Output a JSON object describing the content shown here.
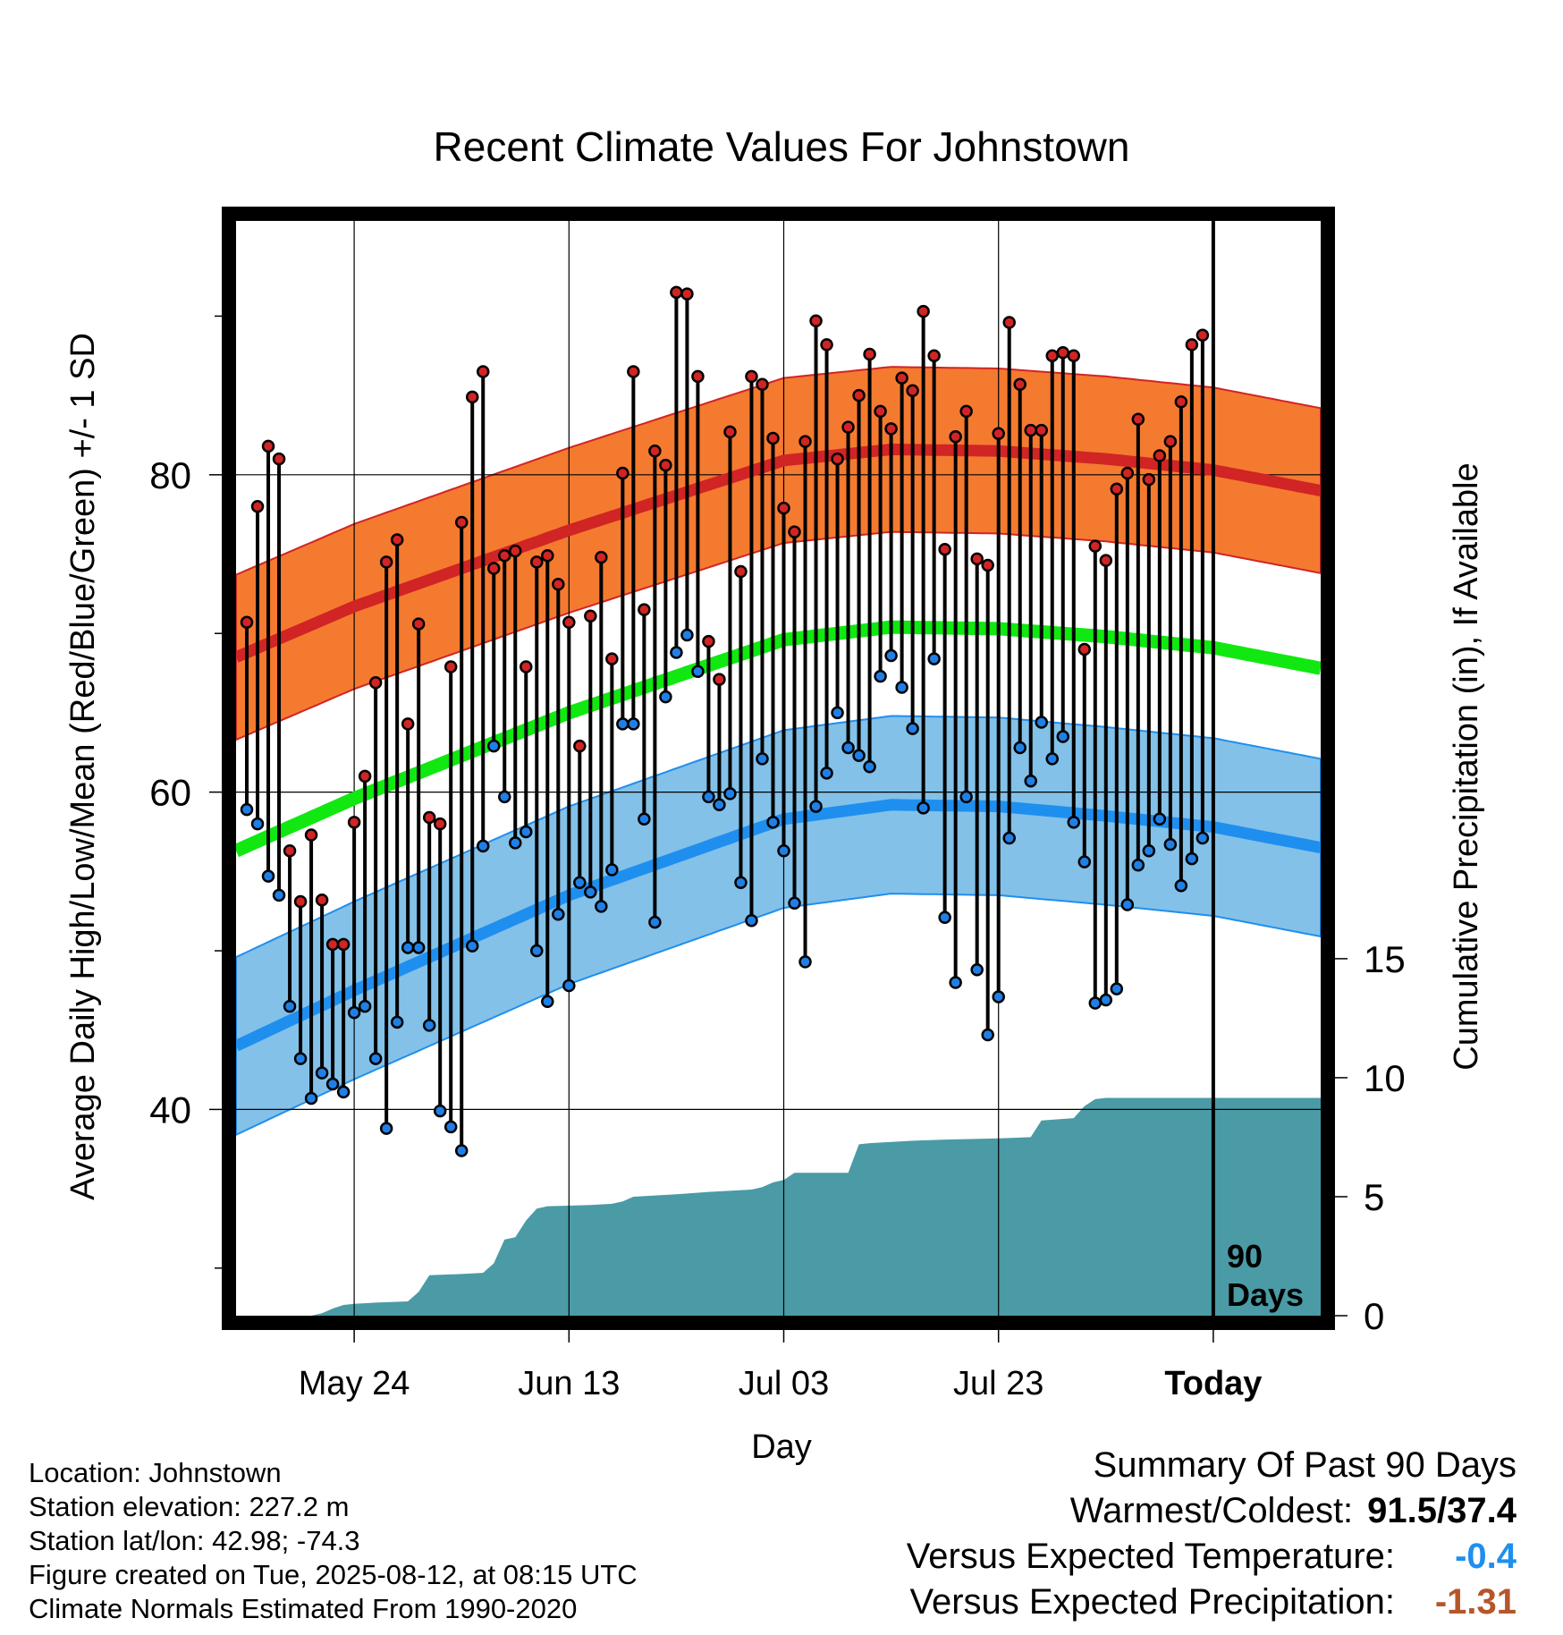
{
  "title": "Recent Climate Values For Johnstown",
  "y_left_label": "Average Daily High/Low/Mean (Red/Blue/Green) +/- 1 SD",
  "y_right_label": "Cumulative Precipitation (in), If Available",
  "x_label": "Day",
  "today_annotation": [
    "90",
    "Days"
  ],
  "colors": {
    "high_band": "#f47a30",
    "high_line": "#d12424",
    "low_band": "#83c1e8",
    "low_line": "#1f8fef",
    "mean_line": "#11e811",
    "precip": "#4a9ba6",
    "high_dot": "#d12424",
    "low_dot": "#1f7fe6",
    "temp_anomaly": "#1f8fef",
    "precip_anomaly": "#b5562a"
  },
  "chart_data": {
    "type": "line",
    "x_ticks": [
      {
        "day": 10,
        "label": "May 24"
      },
      {
        "day": 30,
        "label": "Jun 13"
      },
      {
        "day": 50,
        "label": "Jul 03"
      },
      {
        "day": 70,
        "label": "Jul 23"
      },
      {
        "day": 90,
        "label": "Today"
      }
    ],
    "xlim": [
      -1,
      100
    ],
    "ylim_left": [
      27,
      96
    ],
    "y_ticks_left": [
      40,
      60,
      80
    ],
    "y_minor_left": [
      30,
      50,
      70,
      90
    ],
    "ylim_right": [
      0,
      46
    ],
    "y_ticks_right": [
      0,
      5,
      10,
      15
    ],
    "normal_high_anchors": [
      [
        -1,
        68.5
      ],
      [
        10,
        71.7
      ],
      [
        30,
        76.5
      ],
      [
        50,
        80.9
      ],
      [
        60,
        81.6
      ],
      [
        70,
        81.5
      ],
      [
        80,
        81.0
      ],
      [
        90,
        80.3
      ],
      [
        100,
        79.0
      ]
    ],
    "normal_low_anchors": [
      [
        -1,
        44.0
      ],
      [
        10,
        47.5
      ],
      [
        30,
        53.5
      ],
      [
        50,
        58.3
      ],
      [
        60,
        59.2
      ],
      [
        70,
        59.1
      ],
      [
        80,
        58.5
      ],
      [
        90,
        57.8
      ],
      [
        100,
        56.5
      ]
    ],
    "normal_mean_anchors": [
      [
        -1,
        56.3
      ],
      [
        10,
        59.6
      ],
      [
        30,
        65.0
      ],
      [
        50,
        69.6
      ],
      [
        60,
        70.4
      ],
      [
        70,
        70.3
      ],
      [
        80,
        69.8
      ],
      [
        90,
        69.1
      ],
      [
        100,
        67.8
      ]
    ],
    "sd_high": 5.2,
    "sd_low": 5.6,
    "daily": [
      {
        "high": 70.7,
        "low": 58.9
      },
      {
        "high": 78.0,
        "low": 58.0
      },
      {
        "high": 81.8,
        "low": 54.7
      },
      {
        "high": 81.0,
        "low": 53.5
      },
      {
        "high": 56.3,
        "low": 46.5
      },
      {
        "high": 53.1,
        "low": 43.2
      },
      {
        "high": 57.3,
        "low": 40.7
      },
      {
        "high": 53.2,
        "low": 42.3
      },
      {
        "high": 50.4,
        "low": 41.6
      },
      {
        "high": 50.4,
        "low": 41.1
      },
      {
        "high": 58.1,
        "low": 46.1
      },
      {
        "high": 61.0,
        "low": 46.5
      },
      {
        "high": 66.9,
        "low": 43.2
      },
      {
        "high": 74.5,
        "low": 38.8
      },
      {
        "high": 75.9,
        "low": 45.5
      },
      {
        "high": 64.3,
        "low": 50.2
      },
      {
        "high": 70.6,
        "low": 50.2
      },
      {
        "high": 58.4,
        "low": 45.3
      },
      {
        "high": 58.0,
        "low": 39.9
      },
      {
        "high": 67.9,
        "low": 38.9
      },
      {
        "high": 77.0,
        "low": 37.4
      },
      {
        "high": 84.9,
        "low": 50.3
      },
      {
        "high": 86.5,
        "low": 56.6
      },
      {
        "high": 74.1,
        "low": 62.9
      },
      {
        "high": 74.9,
        "low": 59.7
      },
      {
        "high": 75.2,
        "low": 56.8
      },
      {
        "high": 67.9,
        "low": 57.5
      },
      {
        "high": 74.5,
        "low": 50.0
      },
      {
        "high": 74.9,
        "low": 46.8
      },
      {
        "high": 73.1,
        "low": 52.3
      },
      {
        "high": 70.7,
        "low": 47.8
      },
      {
        "high": 62.9,
        "low": 54.3
      },
      {
        "high": 71.1,
        "low": 53.7
      },
      {
        "high": 74.8,
        "low": 52.8
      },
      {
        "high": 68.4,
        "low": 55.1
      },
      {
        "high": 80.1,
        "low": 64.3
      },
      {
        "high": 86.5,
        "low": 64.3
      },
      {
        "high": 71.5,
        "low": 58.3
      },
      {
        "high": 81.5,
        "low": 51.8
      },
      {
        "high": 80.6,
        "low": 66.0
      },
      {
        "high": 91.5,
        "low": 68.8
      },
      {
        "high": 91.4,
        "low": 69.9
      },
      {
        "high": 86.2,
        "low": 67.6
      },
      {
        "high": 69.5,
        "low": 59.7
      },
      {
        "high": 67.1,
        "low": 59.2
      },
      {
        "high": 82.7,
        "low": 59.9
      },
      {
        "high": 73.9,
        "low": 54.3
      },
      {
        "high": 86.2,
        "low": 51.9
      },
      {
        "high": 85.7,
        "low": 62.1
      },
      {
        "high": 82.3,
        "low": 58.1
      },
      {
        "high": 77.9,
        "low": 56.3
      },
      {
        "high": 76.4,
        "low": 53.0
      },
      {
        "high": 82.1,
        "low": 49.3
      },
      {
        "high": 89.7,
        "low": 59.1
      },
      {
        "high": 88.2,
        "low": 61.2
      },
      {
        "high": 81.0,
        "low": 65.0
      },
      {
        "high": 83.0,
        "low": 62.8
      },
      {
        "high": 85.0,
        "low": 62.3
      },
      {
        "high": 87.6,
        "low": 61.6
      },
      {
        "high": 84.0,
        "low": 67.3
      },
      {
        "high": 82.9,
        "low": 68.6
      },
      {
        "high": 86.1,
        "low": 66.6
      },
      {
        "high": 85.3,
        "low": 64.0
      },
      {
        "high": 90.3,
        "low": 59.0
      },
      {
        "high": 87.5,
        "low": 68.4
      },
      {
        "high": 75.3,
        "low": 52.1
      },
      {
        "high": 82.4,
        "low": 48.0
      },
      {
        "high": 84.0,
        "low": 59.7
      },
      {
        "high": 74.7,
        "low": 48.8
      },
      {
        "high": 74.3,
        "low": 44.7
      },
      {
        "high": 82.6,
        "low": 47.1
      },
      {
        "high": 89.6,
        "low": 57.1
      },
      {
        "high": 85.7,
        "low": 62.8
      },
      {
        "high": 82.8,
        "low": 60.7
      },
      {
        "high": 82.8,
        "low": 64.4
      },
      {
        "high": 87.5,
        "low": 62.1
      },
      {
        "high": 87.7,
        "low": 63.5
      },
      {
        "high": 87.5,
        "low": 58.1
      },
      {
        "high": 69.0,
        "low": 55.6
      },
      {
        "high": 75.5,
        "low": 46.7
      },
      {
        "high": 74.6,
        "low": 46.9
      },
      {
        "high": 79.1,
        "low": 47.6
      },
      {
        "high": 80.1,
        "low": 52.9
      },
      {
        "high": 83.5,
        "low": 55.4
      },
      {
        "high": 79.7,
        "low": 56.3
      },
      {
        "high": 81.2,
        "low": 58.3
      },
      {
        "high": 82.1,
        "low": 56.7
      },
      {
        "high": 84.6,
        "low": 54.1
      },
      {
        "high": 88.2,
        "low": 55.8
      },
      {
        "high": 88.8,
        "low": 57.1
      }
    ],
    "precip_cumulative": [
      [
        -1,
        0
      ],
      [
        6,
        0
      ],
      [
        7,
        0.1
      ],
      [
        8,
        0.3
      ],
      [
        9,
        0.45
      ],
      [
        10,
        0.5
      ],
      [
        12,
        0.55
      ],
      [
        15,
        0.6
      ],
      [
        16,
        1.0
      ],
      [
        17,
        1.7
      ],
      [
        20,
        1.75
      ],
      [
        22,
        1.8
      ],
      [
        23,
        2.2
      ],
      [
        24,
        3.2
      ],
      [
        25,
        3.3
      ],
      [
        26,
        4.0
      ],
      [
        27,
        4.5
      ],
      [
        28,
        4.6
      ],
      [
        32,
        4.65
      ],
      [
        34,
        4.7
      ],
      [
        35,
        4.8
      ],
      [
        36,
        5.0
      ],
      [
        38,
        5.05
      ],
      [
        40,
        5.1
      ],
      [
        43,
        5.2
      ],
      [
        47,
        5.3
      ],
      [
        48,
        5.4
      ],
      [
        49,
        5.6
      ],
      [
        50,
        5.7
      ],
      [
        51,
        6.0
      ],
      [
        56,
        6.0
      ],
      [
        57,
        7.2
      ],
      [
        58,
        7.25
      ],
      [
        60,
        7.3
      ],
      [
        62,
        7.35
      ],
      [
        65,
        7.4
      ],
      [
        70,
        7.45
      ],
      [
        73,
        7.5
      ],
      [
        74,
        8.2
      ],
      [
        77,
        8.3
      ],
      [
        78,
        8.8
      ],
      [
        79,
        9.1
      ],
      [
        80,
        9.15
      ],
      [
        100,
        9.15
      ]
    ]
  },
  "footer": {
    "location": "Location: Johnstown",
    "elevation": "Station elevation: 227.2 m",
    "latlon": "Station lat/lon: 42.98; -74.3",
    "created": "Figure created on Tue, 2025-08-12, at 08:15 UTC",
    "normals": "Climate Normals Estimated From 1990-2020"
  },
  "summary": {
    "heading": "Summary Of Past 90 Days",
    "warm_cold_label": "Warmest/Coldest:",
    "warm_cold_value": "91.5/37.4",
    "temp_label": "Versus Expected Temperature:",
    "temp_value": "-0.4",
    "precip_label": "Versus Expected Precipitation:",
    "precip_value": "-1.31"
  }
}
